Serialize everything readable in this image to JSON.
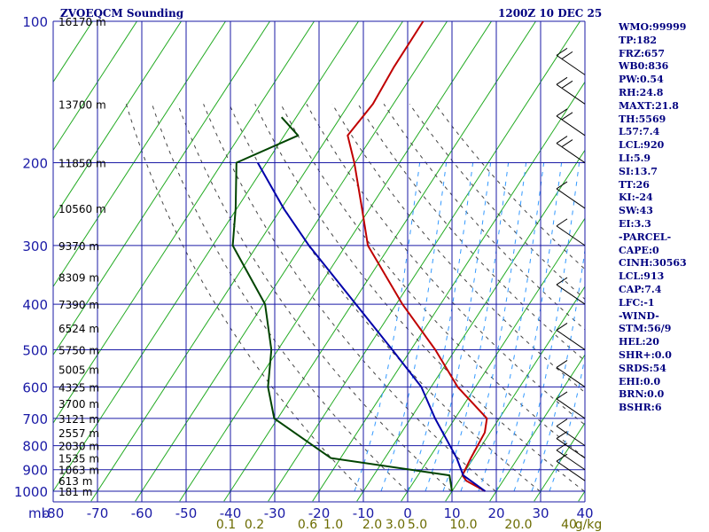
{
  "header": {
    "title": "ZVOEQCM Sounding",
    "time": "1200Z 10 DEC 25"
  },
  "colors": {
    "grid": "#1a1aa6",
    "isotherm": "#22aa22",
    "temperature": "#c00000",
    "dewpoint": "#004400",
    "parcel": "#0000aa",
    "moist_adiabat": "#3399ff",
    "dry_adiabat": "#444444",
    "mixing_ratio_label": "#6b6b00"
  },
  "stats": [
    "WMO:99999",
    "TP:182",
    "FRZ:657",
    "WB0:836",
    "PW:0.54",
    "RH:24.8",
    "MAXT:21.8",
    "TH:5569",
    "L57:7.4",
    "LCL:920",
    "LI:5.9",
    "SI:13.7",
    "TT:26",
    "KI:-24",
    "SW:43",
    "EI:3.3",
    "-PARCEL-",
    "CAPE:0",
    "CINH:30563",
    "LCL:913",
    "CAP:7.4",
    "LFC:-1",
    "-WIND-",
    "STM:56/9",
    "HEL:20",
    "SHR+:0.0",
    "SRDS:54",
    "EHI:0.0",
    "BRN:0.0",
    "BSHR:6"
  ],
  "chart_data": {
    "type": "line",
    "title": "ZVOEQCM Sounding",
    "subtitle": "1200Z 10 DEC 25",
    "y_axis": {
      "label": "mb",
      "scale": "log",
      "range": [
        1000,
        100
      ],
      "ticks": [
        100,
        200,
        300,
        400,
        500,
        600,
        700,
        800,
        900,
        1000
      ]
    },
    "x_axis": {
      "label": "",
      "unit": "°C",
      "range": [
        -80,
        40
      ],
      "ticks": [
        -80,
        -70,
        -60,
        -50,
        -40,
        -30,
        -20,
        -10,
        0,
        10,
        20,
        30,
        40
      ]
    },
    "height_labels": [
      {
        "p": 100,
        "label": "16170 m"
      },
      {
        "p": 150,
        "label": "13700 m"
      },
      {
        "p": 200,
        "label": "11850 m"
      },
      {
        "p": 250,
        "label": "10560 m"
      },
      {
        "p": 300,
        "label": "9370 m"
      },
      {
        "p": 350,
        "label": "8309 m"
      },
      {
        "p": 400,
        "label": "7390 m"
      },
      {
        "p": 450,
        "label": "6524 m"
      },
      {
        "p": 500,
        "label": "5750 m"
      },
      {
        "p": 550,
        "label": "5005 m"
      },
      {
        "p": 600,
        "label": "4325 m"
      },
      {
        "p": 650,
        "label": "3700 m"
      },
      {
        "p": 700,
        "label": "3121 m"
      },
      {
        "p": 750,
        "label": "2557 m"
      },
      {
        "p": 800,
        "label": "2030 m"
      },
      {
        "p": 850,
        "label": "1535 m"
      },
      {
        "p": 900,
        "label": "1063 m"
      },
      {
        "p": 950,
        "label": "613 m"
      },
      {
        "p": 1000,
        "label": "181 m"
      }
    ],
    "mixing_ratio_labels": [
      "0.1",
      "0.2",
      "0.6",
      "1.0",
      "2.0",
      "3.0",
      "5.0",
      "10.0",
      "20.0",
      "40",
      "g/kg"
    ],
    "series": [
      {
        "name": "Temperature",
        "points": [
          {
            "p": 1000,
            "t": 17.5
          },
          {
            "p": 950,
            "t": 11.7
          },
          {
            "p": 925,
            "t": 10.0
          },
          {
            "p": 850,
            "t": 9.4
          },
          {
            "p": 750,
            "t": 8.8
          },
          {
            "p": 700,
            "t": 7.2
          },
          {
            "p": 650,
            "t": 1.8
          },
          {
            "p": 600,
            "t": -4.0
          },
          {
            "p": 500,
            "t": -14.5
          },
          {
            "p": 400,
            "t": -28.6
          },
          {
            "p": 300,
            "t": -45.0
          },
          {
            "p": 250,
            "t": -51.8
          },
          {
            "p": 200,
            "t": -60.2
          },
          {
            "p": 175,
            "t": -65.7
          },
          {
            "p": 150,
            "t": -64.6
          },
          {
            "p": 125,
            "t": -65.3
          },
          {
            "p": 100,
            "t": -65.4
          }
        ]
      },
      {
        "name": "Dewpoint",
        "points": [
          {
            "p": 1000,
            "t": 10.0
          },
          {
            "p": 925,
            "t": 7.1
          },
          {
            "p": 850,
            "t": -22.2
          },
          {
            "p": 700,
            "t": -40.8
          },
          {
            "p": 600,
            "t": -46.8
          },
          {
            "p": 500,
            "t": -51.5
          },
          {
            "p": 400,
            "t": -59.6
          },
          {
            "p": 300,
            "t": -75.5
          },
          {
            "p": 250,
            "t": -80.3
          },
          {
            "p": 200,
            "t": -86.8
          },
          {
            "p": 175,
            "t": -76.9
          },
          {
            "p": 160,
            "t": -83.3
          }
        ]
      },
      {
        "name": "Parcel",
        "points": [
          {
            "p": 1000,
            "t": 17.5
          },
          {
            "p": 925,
            "t": 10.2
          },
          {
            "p": 850,
            "t": 6.2
          },
          {
            "p": 700,
            "t": -4.5
          },
          {
            "p": 600,
            "t": -12.2
          },
          {
            "p": 500,
            "t": -24.2
          },
          {
            "p": 400,
            "t": -39.1
          },
          {
            "p": 300,
            "t": -58.3
          },
          {
            "p": 250,
            "t": -69.5
          },
          {
            "p": 200,
            "t": -82.0
          }
        ]
      }
    ],
    "wind_barbs": [
      {
        "p": 130
      },
      {
        "p": 150
      },
      {
        "p": 175
      },
      {
        "p": 200
      },
      {
        "p": 250
      },
      {
        "p": 300
      },
      {
        "p": 400
      },
      {
        "p": 500
      },
      {
        "p": 600
      },
      {
        "p": 700
      },
      {
        "p": 800
      },
      {
        "p": 850
      },
      {
        "p": 900
      },
      {
        "p": 950
      }
    ]
  }
}
